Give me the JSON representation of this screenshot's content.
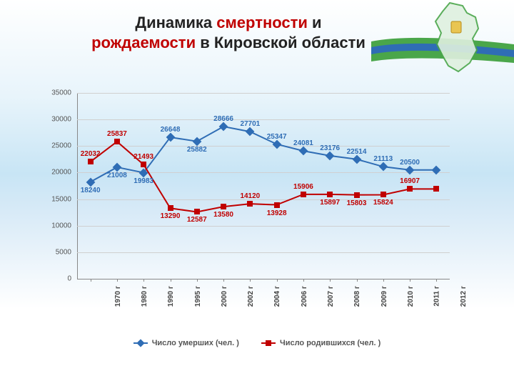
{
  "title": {
    "line1_dark": "Динамика ",
    "line1_red": "смертности",
    "line1_dark2": " и",
    "line2_red": "рождаемости",
    "line2_dark": " в Кировской области",
    "fontsize": 22
  },
  "chart": {
    "type": "line",
    "xlabels": [
      "1970 г",
      "1980 г",
      "1990 г",
      "1995 г",
      "2000 г",
      "2002 г",
      "2004 г",
      "2006 г",
      "2007 г",
      "2008 г",
      "2009 г",
      "2010 г",
      "2011 г",
      "2012 г"
    ],
    "ylim": [
      0,
      35000
    ],
    "ytick_step": 5000,
    "yticks": [
      0,
      5000,
      10000,
      15000,
      20000,
      25000,
      30000,
      35000
    ],
    "grid_color": "#d0d0d0",
    "axis_color": "#888888",
    "background": "transparent",
    "label_fontsize": 10,
    "data_label_fontsize": 10,
    "line_width": 2,
    "marker_size": 8,
    "series": [
      {
        "name": "Число умерших (чел. )",
        "color": "#2f6db5",
        "marker": "diamond",
        "values": [
          18240,
          21008,
          19983,
          26648,
          25882,
          28666,
          27701,
          25347,
          24081,
          23176,
          22514,
          21113,
          20500,
          20500
        ],
        "labels": [
          "18240",
          "21008",
          "19983",
          "26648",
          "25882",
          "28666",
          "27701",
          "25347",
          "24081",
          "23176",
          "22514",
          "21113",
          "20500",
          ""
        ],
        "label_pos": [
          "below",
          "below",
          "below",
          "above",
          "below",
          "above",
          "above",
          "above",
          "above",
          "above",
          "above",
          "above",
          "above",
          "none"
        ]
      },
      {
        "name": "Число родившихся (чел. )",
        "color": "#c00000",
        "marker": "square",
        "values": [
          22032,
          25837,
          21493,
          13290,
          12587,
          13580,
          14120,
          13928,
          15906,
          15897,
          15803,
          15824,
          16907,
          16907
        ],
        "labels": [
          "22032",
          "25837",
          "21493",
          "13290",
          "12587",
          "13580",
          "14120",
          "13928",
          "15906",
          "15897",
          "15803",
          "15824",
          "16907",
          ""
        ],
        "label_pos": [
          "above",
          "above",
          "above",
          "below",
          "below",
          "below",
          "above",
          "below",
          "above",
          "below",
          "below",
          "below",
          "above",
          "none"
        ]
      }
    ],
    "legend": {
      "items": [
        "Число умерших (чел. )",
        "Число родившихся (чел. )"
      ]
    }
  }
}
